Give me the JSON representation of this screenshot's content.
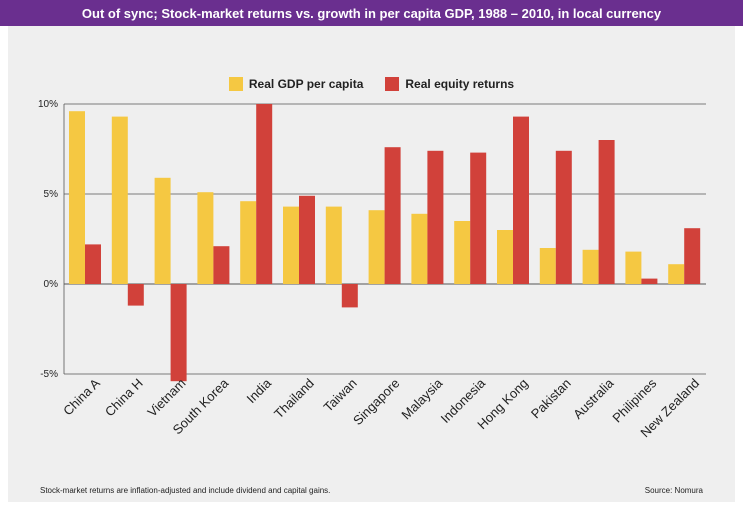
{
  "title": "Out of sync; Stock-market returns vs. growth in per capita GDP, 1988 – 2010, in local currency",
  "footnote": "Stock-market returns are inflation-adjusted and include dividend and capital gains.",
  "source": "Source: Nomura",
  "colors": {
    "header": "#6a2f8f",
    "panel": "#efefef",
    "gdp": "#f5c842",
    "equity": "#d1413a"
  },
  "chart_data": {
    "type": "bar",
    "title": "Out of sync; Stock-market returns vs. growth in per capita GDP, 1988 – 2010, in local currency",
    "categories": [
      "China A",
      "China H",
      "Vietnam",
      "South Korea",
      "India",
      "Thailand",
      "Taiwan",
      "Singapore",
      "Malaysia",
      "Indonesia",
      "Hong Kong",
      "Pakistan",
      "Australia",
      "Philipines",
      "New Zealand"
    ],
    "series": [
      {
        "name": "Real GDP per capita",
        "values": [
          9.6,
          9.3,
          5.9,
          5.1,
          4.6,
          4.3,
          4.3,
          4.1,
          3.9,
          3.5,
          3.0,
          2.0,
          1.9,
          1.8,
          1.1
        ]
      },
      {
        "name": "Real equity returns",
        "values": [
          2.2,
          -1.2,
          -5.4,
          2.1,
          10.0,
          4.9,
          -1.3,
          7.6,
          7.4,
          7.3,
          9.3,
          7.4,
          8.0,
          0.3,
          3.1
        ]
      }
    ],
    "ylim": [
      -5,
      10
    ],
    "yticks": [
      "10%",
      "5%",
      "0%",
      "-5%"
    ],
    "ytick_values": [
      10,
      5,
      0,
      -5
    ],
    "grid": true,
    "legend_position": "top-center"
  }
}
